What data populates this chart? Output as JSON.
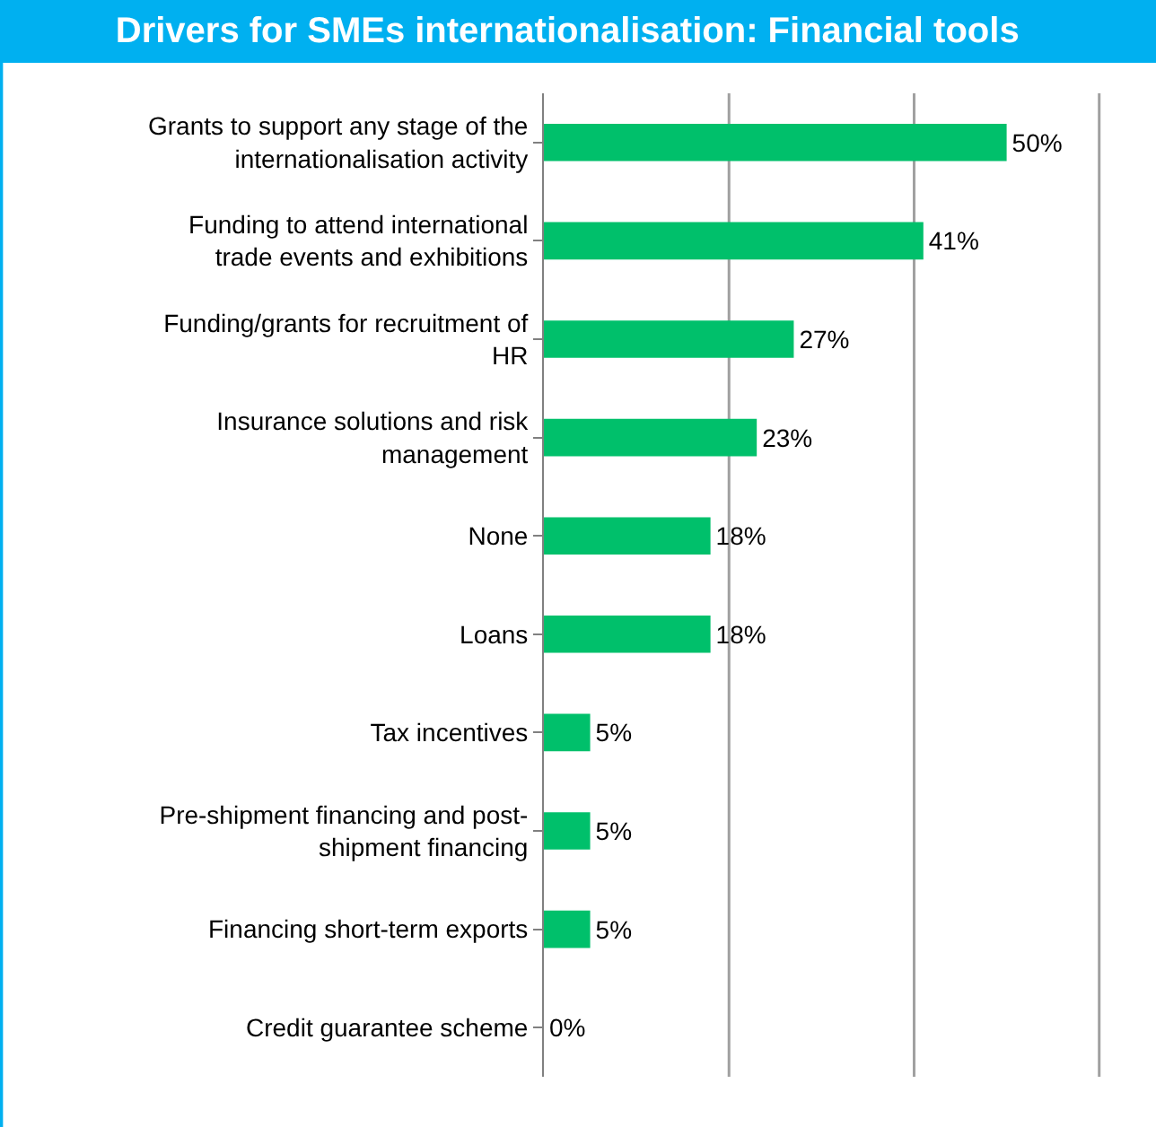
{
  "chart_data": {
    "type": "bar",
    "orientation": "horizontal",
    "title": "Drivers for SMEs internationalisation: Financial tools",
    "categories": [
      "Grants to support any stage of the internationalisation activity",
      "Funding to attend international trade events and exhibitions",
      "Funding/grants for recruitment of HR",
      "Insurance solutions and risk management",
      "None",
      "Loans",
      "Tax incentives",
      "Pre-shipment financing and post-shipment financing",
      "Financing short-term exports",
      "Credit guarantee scheme"
    ],
    "series": [
      {
        "color": "#00c06b",
        "values": [
          50,
          41,
          27,
          23,
          18,
          18,
          5,
          5,
          5,
          0
        ],
        "value_labels": [
          "50%",
          "41%",
          "27%",
          "23%",
          "18%",
          "18%",
          "5%",
          "5%",
          "5%",
          "0%"
        ]
      }
    ],
    "ref_lines": [
      {
        "axis": "x",
        "value": 20,
        "color": "#a0a0a0"
      },
      {
        "axis": "x",
        "value": 40,
        "color": "#a0a0a0"
      },
      {
        "axis": "x",
        "value": 60,
        "color": "#a0a0a0"
      }
    ],
    "tick_labels": "y"
  }
}
